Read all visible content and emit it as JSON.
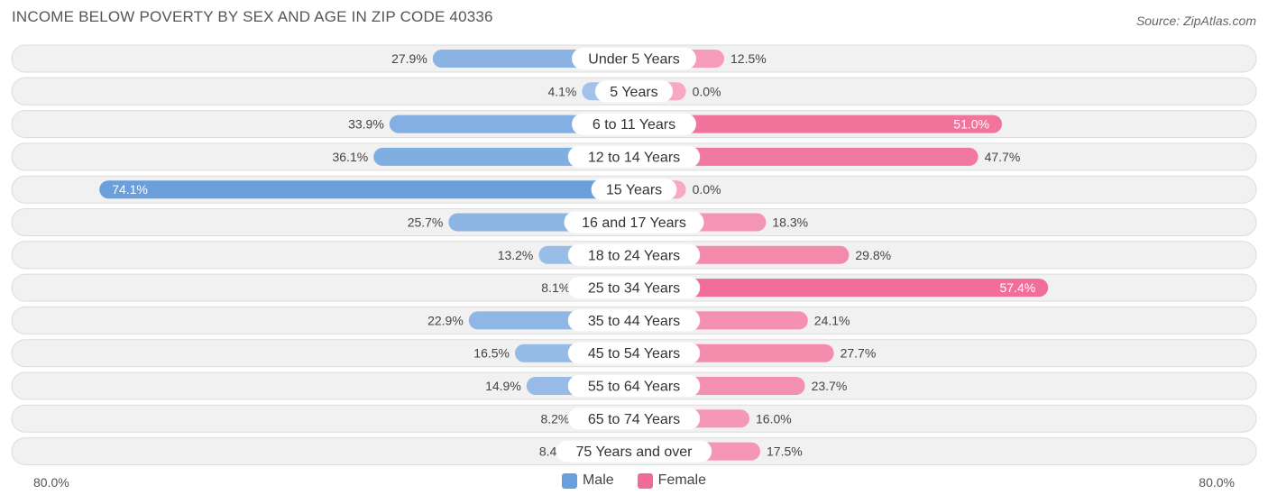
{
  "header": {
    "title": "INCOME BELOW POVERTY BY SEX AND AGE IN ZIP CODE 40336",
    "source": "Source: ZipAtlas.com"
  },
  "axis": {
    "left_label": "80.0%",
    "right_label": "80.0%"
  },
  "legend": {
    "male_label": "Male",
    "female_label": "Female"
  },
  "colors": {
    "male_strong": "#6a9fdc",
    "male_light": "#a6c5ea",
    "female_strong": "#f06c96",
    "female_light": "#f7a8c3",
    "row_bg": "#f1f1f1",
    "row_border": "#dcdcdc"
  },
  "chart_data": {
    "type": "bar",
    "orientation": "horizontal-diverging",
    "title": "INCOME BELOW POVERTY BY SEX AND AGE IN ZIP CODE 40336",
    "xlim": [
      -80,
      80
    ],
    "categories": [
      "Under 5 Years",
      "5 Years",
      "6 to 11 Years",
      "12 to 14 Years",
      "15 Years",
      "16 and 17 Years",
      "18 to 24 Years",
      "25 to 34 Years",
      "35 to 44 Years",
      "45 to 54 Years",
      "55 to 64 Years",
      "65 to 74 Years",
      "75 Years and over"
    ],
    "series": [
      {
        "name": "Male",
        "values": [
          27.9,
          4.1,
          33.9,
          36.1,
          74.1,
          25.7,
          13.2,
          8.1,
          22.9,
          16.5,
          14.9,
          8.2,
          8.4
        ]
      },
      {
        "name": "Female",
        "values": [
          12.5,
          0.0,
          51.0,
          47.7,
          0.0,
          18.3,
          29.8,
          57.4,
          24.1,
          27.7,
          23.7,
          16.0,
          17.5
        ]
      }
    ],
    "legend_position": "bottom-center"
  }
}
